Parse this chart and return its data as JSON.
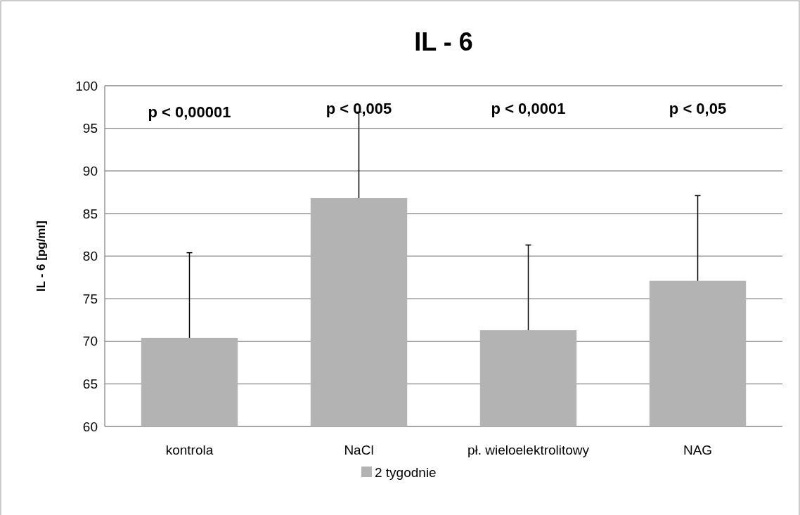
{
  "chart_data": {
    "type": "bar",
    "title": "IL - 6",
    "ylabel": "IL - 6 [pg/ml]",
    "categories": [
      "kontrola",
      "NaCl",
      "pł. wieloelektrolitowy",
      "NAG"
    ],
    "series": [
      {
        "name": "2 tygodnie",
        "color": "#b3b3b3",
        "values": [
          70.4,
          86.8,
          71.3,
          77.1
        ],
        "errors": [
          10,
          10.1,
          10,
          10
        ]
      }
    ],
    "ylim": [
      60,
      100
    ],
    "yticks": [
      60,
      65,
      70,
      75,
      80,
      85,
      90,
      95,
      100
    ],
    "grid": "y",
    "legend": "bottom",
    "annotations": [
      "p < 0,00001",
      "p < 0,005",
      "p < 0,0001",
      "p < 0,05"
    ]
  }
}
